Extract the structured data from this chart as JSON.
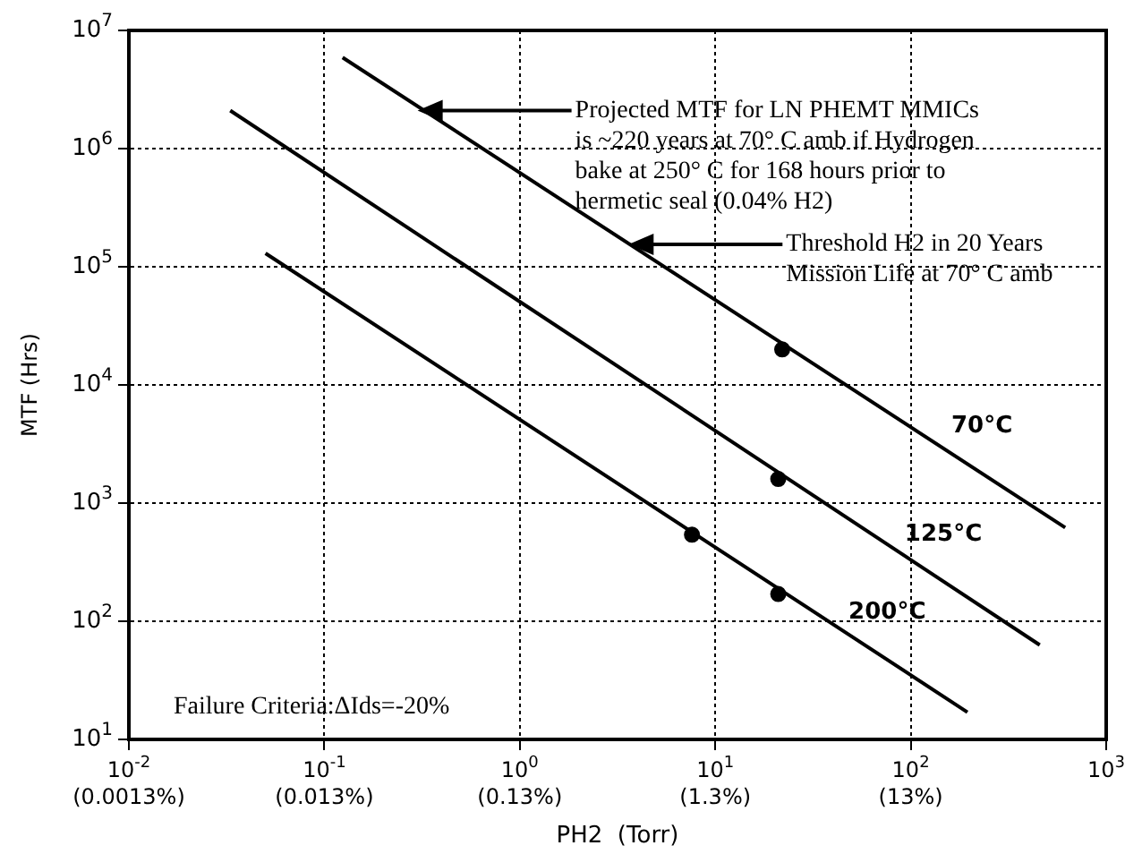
{
  "chart_data": {
    "type": "line",
    "xlabel": "PH2  (Torr)",
    "ylabel": "MTF (Hrs)",
    "log": "xy",
    "grid": true,
    "legend": false,
    "xlim": [
      0.01,
      1000
    ],
    "ylim": [
      10,
      10000000
    ],
    "xticks": [
      {
        "value": 0.01,
        "label": "10$^{-2}$"
      },
      {
        "value": 0.1,
        "label": "10$^{-1}$"
      },
      {
        "value": 1,
        "label": "10$^{0}$"
      },
      {
        "value": 10,
        "label": "10$^{1}$"
      },
      {
        "value": 100,
        "label": "10$^{2}$"
      },
      {
        "value": 1000,
        "label": "10$^{3}$"
      }
    ],
    "yticks": [
      {
        "value": 10,
        "label": "10$^{1}$"
      },
      {
        "value": 100,
        "label": "10$^{2}$"
      },
      {
        "value": 1000,
        "label": "10$^{3}$"
      },
      {
        "value": 10000,
        "label": "10$^{4}$"
      },
      {
        "value": 100000,
        "label": "10$^{5}$"
      },
      {
        "value": 1000000,
        "label": "10$^{6}$"
      },
      {
        "value": 10000000,
        "label": "10$^{7}$"
      }
    ],
    "series": [
      {
        "name": "70°C",
        "color": "#000000",
        "marker": "none",
        "line_style": "solid",
        "x": [
          0.124,
          617
        ],
        "values": [
          5900000,
          620
        ]
      },
      {
        "name": "125°C",
        "color": "#000000",
        "marker": "none",
        "line_style": "solid",
        "x": [
          0.033,
          457
        ],
        "values": [
          2100000,
          63
        ]
      },
      {
        "name": "200°C",
        "color": "#000000",
        "marker": "none",
        "line_style": "solid",
        "x": [
          0.05,
          195
        ],
        "values": [
          130000,
          17
        ]
      },
      {
        "type": "scatter",
        "color": "#000000",
        "marker": "circle",
        "x": [
          22,
          21,
          7.6,
          21
        ],
        "values": [
          20000,
          1600,
          540,
          170
        ]
      }
    ],
    "annotations": [
      {
        "text": "Projected MTF for LN PHEMT MMICs\nis ~220 years at 70° C amb if Hydrogen\nbake at 250° C for 168 hours prior to\nhermetic seal (0.04% H2)",
        "x": 0.3,
        "y": 2100000
      },
      {
        "text": "Threshold H2 in 20 Years\nMission Life at 70° C amb",
        "x": 3.6,
        "y": 155000
      },
      "(0.0013%)",
      "(0.013%)",
      "(0.13%)",
      "(1.3%)",
      "(13%)",
      "Failure Criteria:ΔIds=-20%"
    ]
  }
}
